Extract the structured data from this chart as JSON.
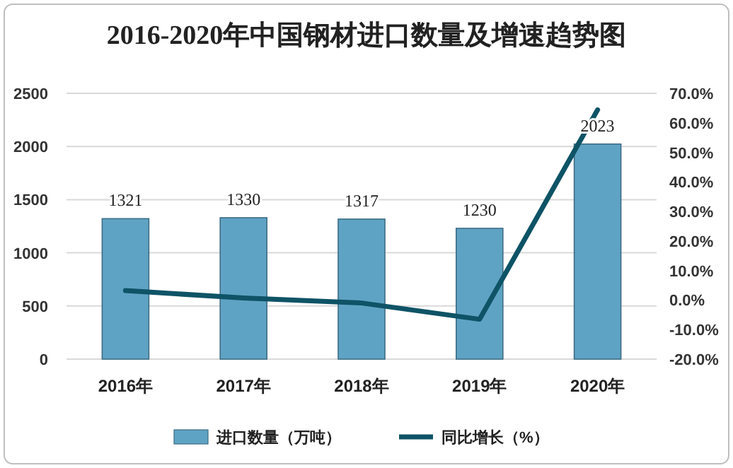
{
  "chart_data": {
    "type": "bar",
    "title": "2016-2020年中国钢材进口数量及增速趋势图",
    "categories": [
      "2016年",
      "2017年",
      "2018年",
      "2019年",
      "2020年"
    ],
    "series": [
      {
        "name": "进口数量（万吨）",
        "color": "#5fa3c4",
        "values": [
          1321,
          1330,
          1317,
          1230,
          2023
        ],
        "value_labels": [
          "1321",
          "1330",
          "1317",
          "1230",
          "2023"
        ]
      },
      {
        "name": "同比增长（%）",
        "type": "line",
        "axis": "y2",
        "color": "#0e5366",
        "values": [
          3.2,
          0.7,
          -1.0,
          -6.5,
          64.4
        ]
      }
    ],
    "ylim": [
      0,
      2500
    ],
    "yticks": [
      0,
      500,
      1000,
      1500,
      2000,
      2500
    ],
    "y2lim": [
      -20,
      70
    ],
    "y2ticks": [
      {
        "value": -20,
        "label": "-20.0%"
      },
      {
        "value": -10,
        "label": "-10.0%"
      },
      {
        "value": 0,
        "label": "0.0%"
      },
      {
        "value": 10,
        "label": "10.0%"
      },
      {
        "value": 20,
        "label": "20.0%"
      },
      {
        "value": 30,
        "label": "30.0%"
      },
      {
        "value": 40,
        "label": "40.0%"
      },
      {
        "value": 50,
        "label": "50.0%"
      },
      {
        "value": 60,
        "label": "60.0%"
      },
      {
        "value": 70,
        "label": "70.0%"
      }
    ],
    "grid": "y",
    "legend": "bottom"
  }
}
